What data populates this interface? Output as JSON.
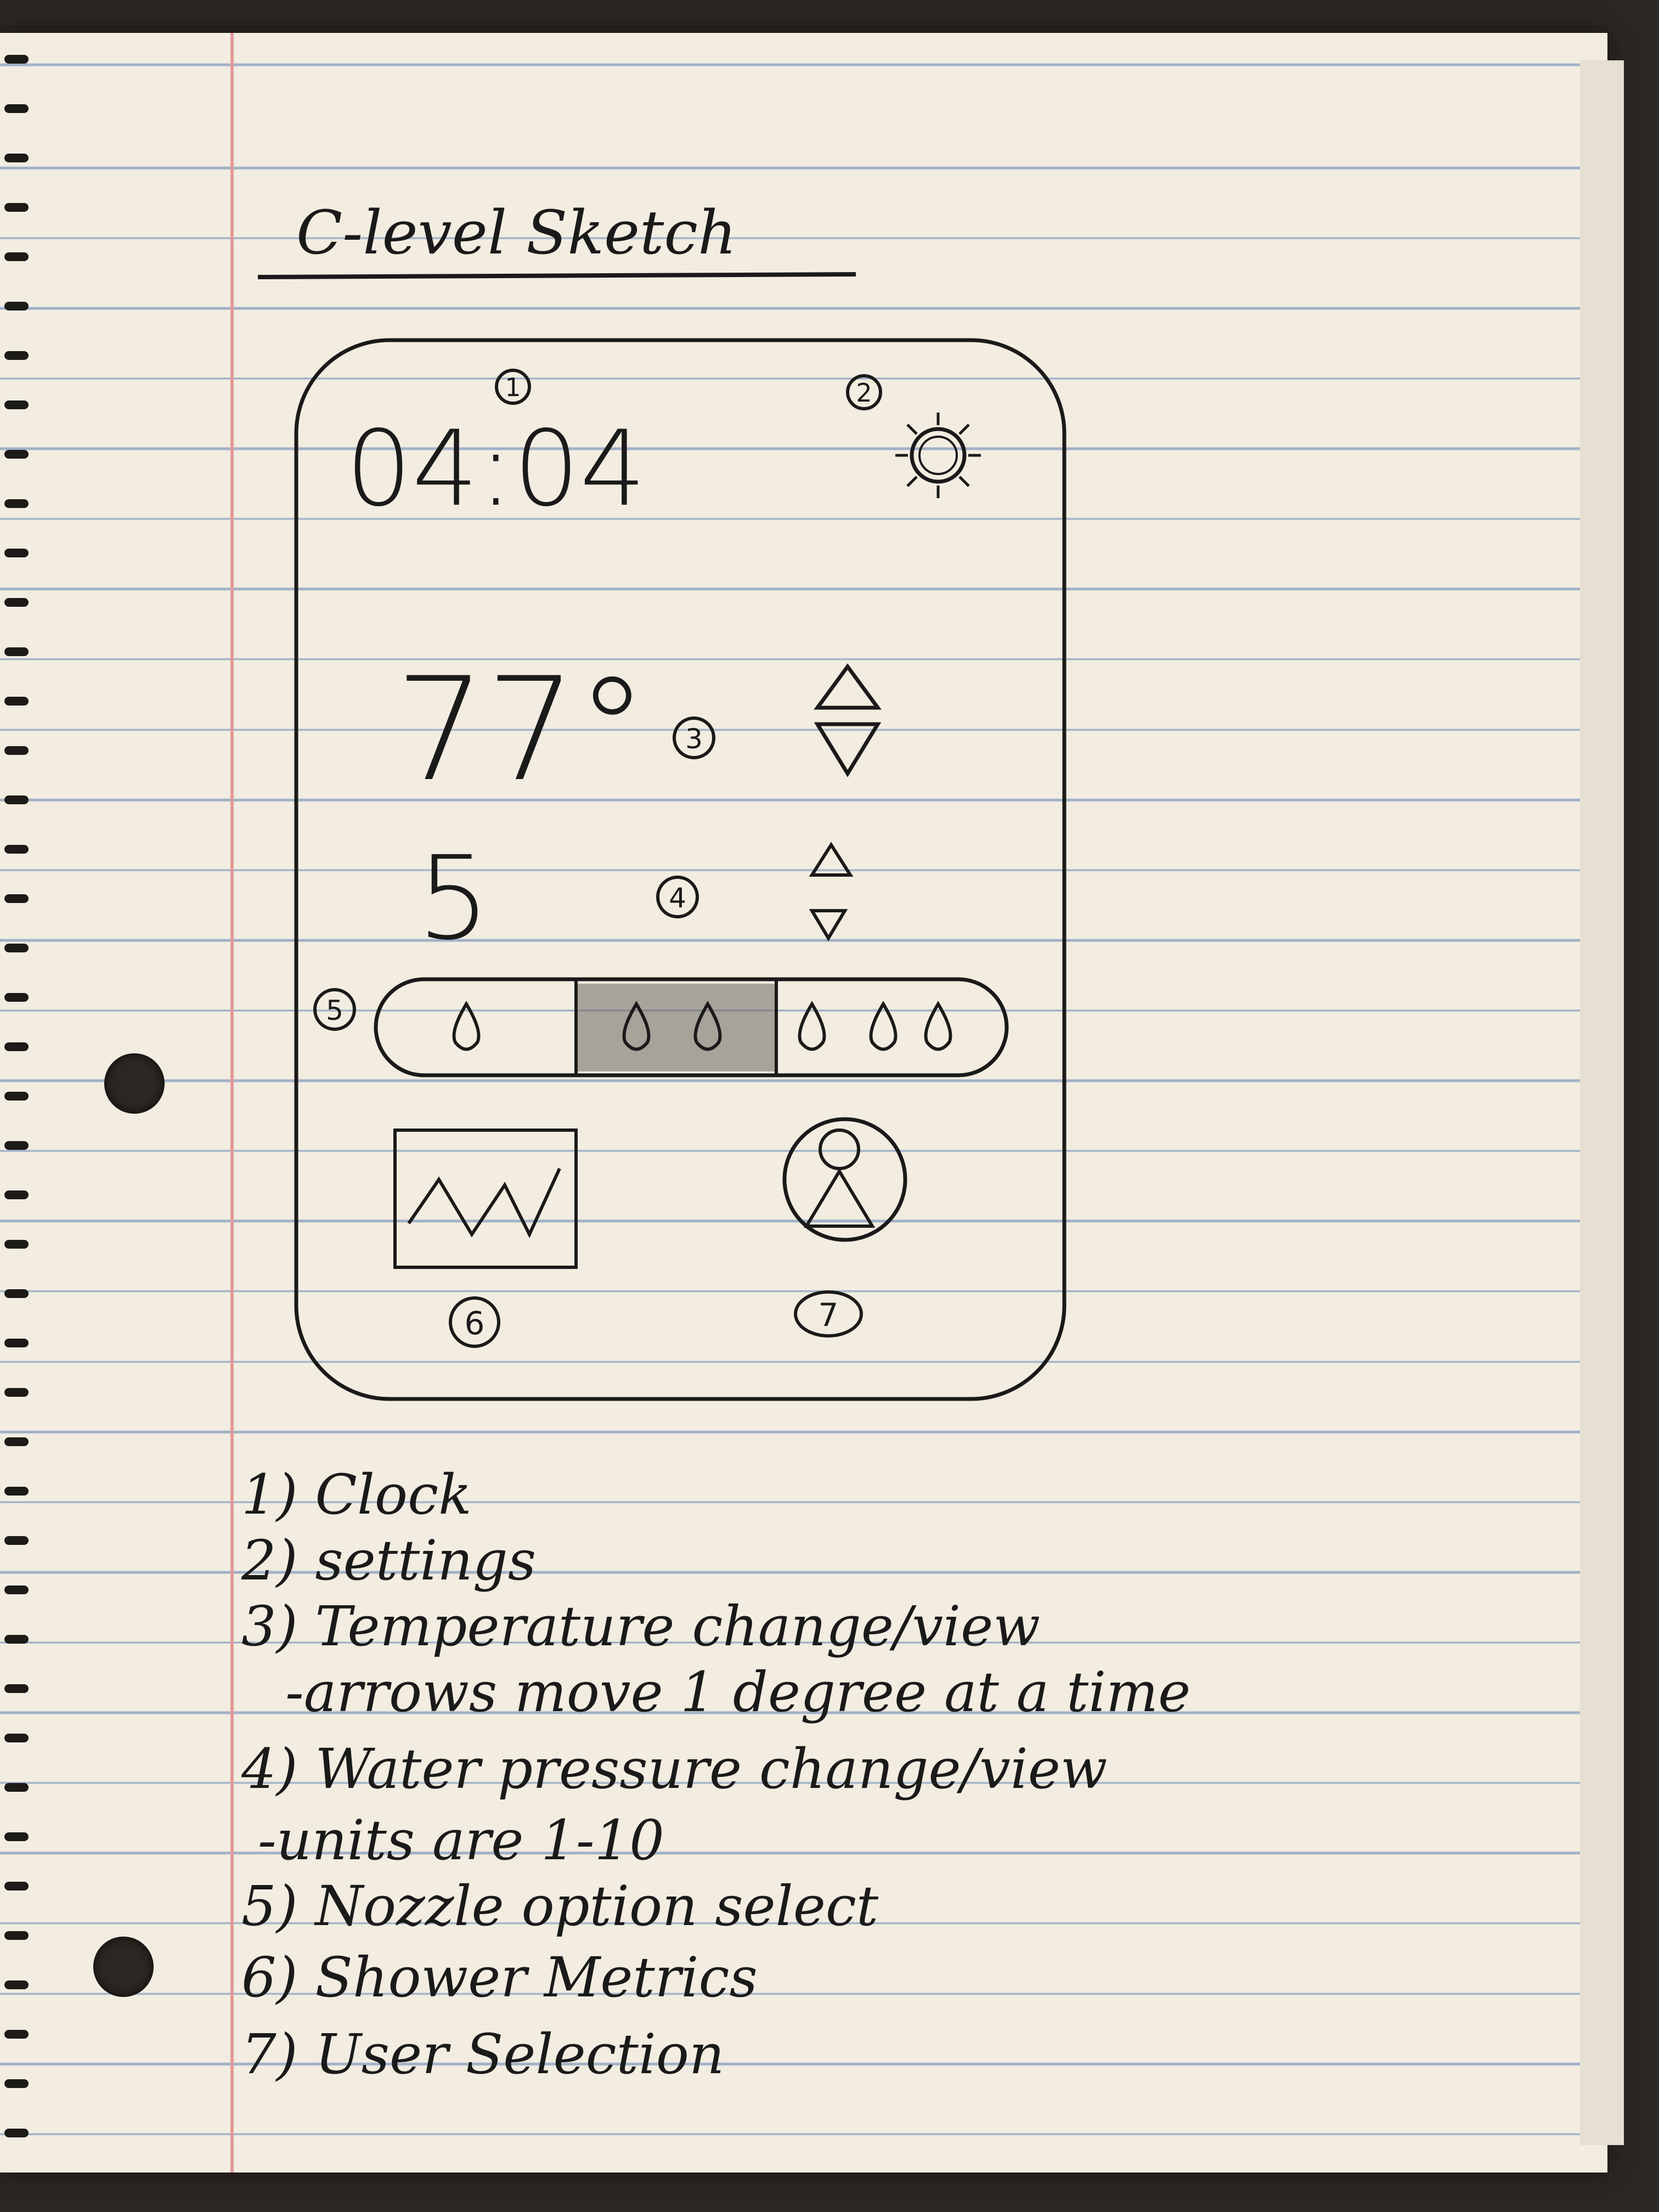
{
  "title": "C-level Sketch",
  "phone": {
    "callouts": [
      "1",
      "2",
      "3",
      "4",
      "5",
      "6",
      "7"
    ],
    "clock": "04:04",
    "temperature": "77°",
    "pressure": "5",
    "icons": {
      "settings": "sun-gear-icon",
      "temp_up": "triangle-up-icon",
      "temp_down": "triangle-down-icon",
      "pressure_up": "triangle-up-icon",
      "pressure_down": "triangle-down-icon",
      "metrics": "line-graph-icon",
      "user": "person-icon"
    },
    "nozzle_options": [
      {
        "drops": 1,
        "selected": false
      },
      {
        "drops": 2,
        "selected": true
      },
      {
        "drops": 3,
        "selected": false
      }
    ]
  },
  "legend": [
    "1) Clock",
    "2) settings",
    "3) Temperature change/view",
    "-arrows move 1 degree at a time",
    "4) Water pressure change/view",
    "-units are 1-10",
    "5) Nozzle option select",
    "6) Shower Metrics",
    "7) User Selection"
  ]
}
